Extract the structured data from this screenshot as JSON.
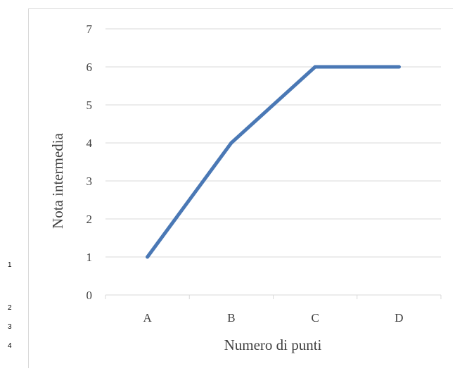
{
  "margin_numbers": [
    "1",
    "2",
    "3",
    "4"
  ],
  "chart_data": {
    "type": "line",
    "categories": [
      "A",
      "B",
      "C",
      "D"
    ],
    "series": [
      {
        "values": [
          1,
          4,
          6,
          6
        ],
        "color": "#4a78b5"
      }
    ],
    "xlabel": "Numero di punti",
    "ylabel": "Nota intermedia",
    "ylim": [
      0,
      7
    ],
    "yticks": [
      "0",
      "1",
      "2",
      "3",
      "4",
      "5",
      "6",
      "7"
    ],
    "grid": true,
    "legend": "none"
  }
}
